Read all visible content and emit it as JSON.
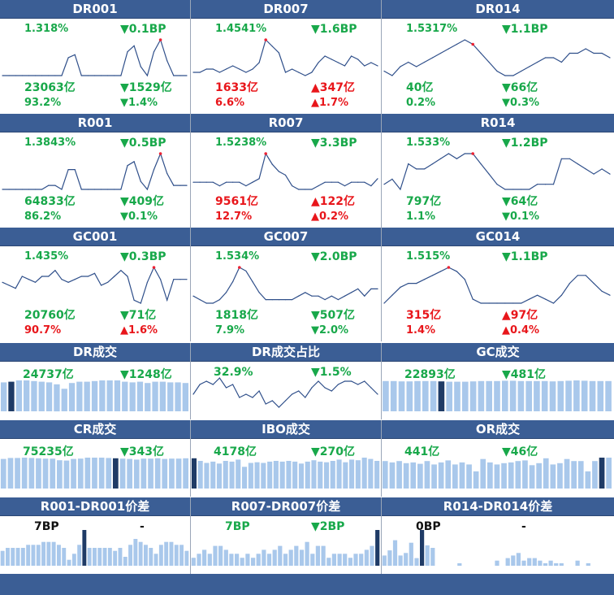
{
  "colors": {
    "header_bg": "#3b5e95",
    "up": "#e8161b",
    "down": "#18a84a",
    "line": "#2f4f8a",
    "bar": "#a9c8eb",
    "bar_hl": "#1f3b66",
    "peak": "#e23"
  },
  "rate_cells": [
    {
      "title": "DR001",
      "rate": "1.318%",
      "rate_color": "g",
      "chg": "▼0.1BP",
      "chg_color": "g",
      "vol": "23063亿",
      "vol_color": "g",
      "vchg": "▼1529亿",
      "vchg_color": "g",
      "pct": "93.2%",
      "pct_color": "g",
      "pchg": "▼1.4%",
      "pchg_color": "g"
    },
    {
      "title": "DR007",
      "rate": "1.4541%",
      "rate_color": "g",
      "chg": "▼1.6BP",
      "chg_color": "g",
      "vol": "1633亿",
      "vol_color": "r",
      "vchg": "▲347亿",
      "vchg_color": "r",
      "pct": "6.6%",
      "pct_color": "r",
      "pchg": "▲1.7%",
      "pchg_color": "r"
    },
    {
      "title": "DR014",
      "rate": "1.5317%",
      "rate_color": "g",
      "chg": "▼1.1BP",
      "chg_color": "g",
      "vol": "40亿",
      "vol_color": "g",
      "vchg": "▼66亿",
      "vchg_color": "g",
      "pct": "0.2%",
      "pct_color": "g",
      "pchg": "▼0.3%",
      "pchg_color": "g"
    },
    {
      "title": "R001",
      "rate": "1.3843%",
      "rate_color": "g",
      "chg": "▼0.5BP",
      "chg_color": "g",
      "vol": "64833亿",
      "vol_color": "g",
      "vchg": "▼409亿",
      "vchg_color": "g",
      "pct": "86.2%",
      "pct_color": "g",
      "pchg": "▼0.1%",
      "pchg_color": "g"
    },
    {
      "title": "R007",
      "rate": "1.5238%",
      "rate_color": "g",
      "chg": "▼3.3BP",
      "chg_color": "g",
      "vol": "9561亿",
      "vol_color": "r",
      "vchg": "▲122亿",
      "vchg_color": "r",
      "pct": "12.7%",
      "pct_color": "r",
      "pchg": "▲0.2%",
      "pchg_color": "r"
    },
    {
      "title": "R014",
      "rate": "1.533%",
      "rate_color": "g",
      "chg": "▼1.2BP",
      "chg_color": "g",
      "vol": "797亿",
      "vol_color": "g",
      "vchg": "▼64亿",
      "vchg_color": "g",
      "pct": "1.1%",
      "pct_color": "g",
      "pchg": "▼0.1%",
      "pchg_color": "g"
    },
    {
      "title": "GC001",
      "rate": "1.435%",
      "rate_color": "g",
      "chg": "▼0.3BP",
      "chg_color": "g",
      "vol": "20760亿",
      "vol_color": "g",
      "vchg": "▼71亿",
      "vchg_color": "g",
      "pct": "90.7%",
      "pct_color": "r",
      "pchg": "▲1.6%",
      "pchg_color": "r"
    },
    {
      "title": "GC007",
      "rate": "1.534%",
      "rate_color": "g",
      "chg": "▼2.0BP",
      "chg_color": "g",
      "vol": "1818亿",
      "vol_color": "g",
      "vchg": "▼507亿",
      "vchg_color": "g",
      "pct": "7.9%",
      "pct_color": "g",
      "pchg": "▼2.0%",
      "pchg_color": "g"
    },
    {
      "title": "GC014",
      "rate": "1.515%",
      "rate_color": "g",
      "chg": "▼1.1BP",
      "chg_color": "g",
      "vol": "315亿",
      "vol_color": "r",
      "vchg": "▲97亿",
      "vchg_color": "r",
      "pct": "1.4%",
      "pct_color": "r",
      "pchg": "▲0.4%",
      "pchg_color": "r"
    }
  ],
  "vol_cells": [
    {
      "title": "DR成交",
      "val": "24737亿",
      "val_color": "g",
      "chg": "▼1248亿",
      "chg_color": "g"
    },
    {
      "title": "DR成交占比",
      "val": "32.9%",
      "val_color": "g",
      "chg": "▼1.5%",
      "chg_color": "g"
    },
    {
      "title": "GC成交",
      "val": "22893亿",
      "val_color": "g",
      "chg": "▼481亿",
      "chg_color": "g"
    },
    {
      "title": "CR成交",
      "val": "75235亿",
      "val_color": "g",
      "chg": "▼343亿",
      "chg_color": "g"
    },
    {
      "title": "IBO成交",
      "val": "4178亿",
      "val_color": "g",
      "chg": "▼270亿",
      "chg_color": "g"
    },
    {
      "title": "OR成交",
      "val": "441亿",
      "val_color": "g",
      "chg": "▼46亿",
      "chg_color": "g"
    },
    {
      "title": "R001-DR001价差",
      "val": "7BP",
      "val_color": "k",
      "chg": "-",
      "chg_color": "k"
    },
    {
      "title": "R007-DR007价差",
      "val": "7BP",
      "val_color": "g",
      "chg": "▼2BP",
      "chg_color": "g"
    },
    {
      "title": "R014-DR014价差",
      "val": "0BP",
      "val_color": "k",
      "chg": "-",
      "chg_color": "k"
    }
  ],
  "chart_data": [
    {
      "type": "line",
      "title": "DR001",
      "values": [
        1.3,
        1.3,
        1.3,
        1.3,
        1.3,
        1.3,
        1.3,
        1.3,
        1.3,
        1.3,
        1.36,
        1.37,
        1.3,
        1.3,
        1.3,
        1.3,
        1.3,
        1.3,
        1.3,
        1.38,
        1.4,
        1.33,
        1.3,
        1.38,
        1.42,
        1.35,
        1.3,
        1.3,
        1.3
      ],
      "peak_index": 24
    },
    {
      "type": "line",
      "title": "DR007",
      "values": [
        1.42,
        1.42,
        1.43,
        1.43,
        1.42,
        1.43,
        1.44,
        1.43,
        1.42,
        1.43,
        1.45,
        1.52,
        1.5,
        1.48,
        1.42,
        1.43,
        1.42,
        1.41,
        1.42,
        1.45,
        1.47,
        1.46,
        1.45,
        1.44,
        1.47,
        1.46,
        1.44,
        1.45,
        1.44
      ],
      "peak_index": 11
    },
    {
      "type": "line",
      "title": "DR014",
      "values": [
        1.46,
        1.45,
        1.47,
        1.48,
        1.47,
        1.48,
        1.49,
        1.5,
        1.51,
        1.52,
        1.53,
        1.52,
        1.5,
        1.48,
        1.46,
        1.45,
        1.45,
        1.46,
        1.47,
        1.48,
        1.49,
        1.49,
        1.48,
        1.5,
        1.5,
        1.51,
        1.5,
        1.5,
        1.49
      ],
      "peak_index": 11
    },
    {
      "type": "line",
      "title": "R001",
      "values": [
        1.33,
        1.33,
        1.33,
        1.33,
        1.33,
        1.33,
        1.33,
        1.34,
        1.34,
        1.33,
        1.38,
        1.38,
        1.33,
        1.33,
        1.33,
        1.33,
        1.33,
        1.33,
        1.33,
        1.39,
        1.4,
        1.35,
        1.33,
        1.38,
        1.42,
        1.37,
        1.34,
        1.34,
        1.34
      ],
      "peak_index": 24
    },
    {
      "type": "line",
      "title": "R007",
      "values": [
        1.5,
        1.5,
        1.5,
        1.5,
        1.49,
        1.5,
        1.5,
        1.5,
        1.49,
        1.5,
        1.51,
        1.58,
        1.55,
        1.53,
        1.52,
        1.49,
        1.48,
        1.48,
        1.48,
        1.49,
        1.5,
        1.5,
        1.5,
        1.49,
        1.5,
        1.5,
        1.5,
        1.49,
        1.51
      ],
      "peak_index": 11
    },
    {
      "type": "line",
      "title": "R014",
      "values": [
        1.5,
        1.51,
        1.49,
        1.54,
        1.53,
        1.53,
        1.54,
        1.55,
        1.56,
        1.55,
        1.56,
        1.56,
        1.54,
        1.52,
        1.5,
        1.49,
        1.49,
        1.49,
        1.49,
        1.5,
        1.5,
        1.5,
        1.55,
        1.55,
        1.54,
        1.53,
        1.52,
        1.53,
        1.52
      ],
      "peak_index": 11
    },
    {
      "type": "line",
      "title": "GC001",
      "values": [
        1.42,
        1.41,
        1.4,
        1.44,
        1.43,
        1.42,
        1.44,
        1.44,
        1.46,
        1.43,
        1.42,
        1.43,
        1.44,
        1.44,
        1.45,
        1.41,
        1.42,
        1.44,
        1.46,
        1.44,
        1.36,
        1.35,
        1.42,
        1.47,
        1.43,
        1.36,
        1.43,
        1.43,
        1.43
      ],
      "peak_index": 23
    },
    {
      "type": "line",
      "title": "GC007",
      "values": [
        1.48,
        1.47,
        1.46,
        1.46,
        1.47,
        1.49,
        1.52,
        1.56,
        1.55,
        1.52,
        1.49,
        1.47,
        1.47,
        1.47,
        1.47,
        1.47,
        1.48,
        1.49,
        1.48,
        1.48,
        1.47,
        1.48,
        1.47,
        1.48,
        1.49,
        1.5,
        1.48,
        1.5,
        1.5
      ],
      "peak_index": 7
    },
    {
      "type": "line",
      "title": "GC014",
      "values": [
        1.45,
        1.47,
        1.49,
        1.5,
        1.5,
        1.51,
        1.52,
        1.53,
        1.54,
        1.53,
        1.51,
        1.46,
        1.45,
        1.45,
        1.45,
        1.45,
        1.45,
        1.45,
        1.46,
        1.47,
        1.46,
        1.45,
        1.47,
        1.5,
        1.52,
        1.52,
        1.5,
        1.48,
        1.47
      ],
      "peak_index": 8
    },
    {
      "type": "bar",
      "title": "DR成交",
      "values": [
        90,
        92,
        96,
        96,
        94,
        92,
        90,
        84,
        70,
        88,
        92,
        92,
        94,
        96,
        96,
        96,
        92,
        90,
        92,
        88,
        92,
        92,
        90,
        90,
        88
      ],
      "highlight_index": 1
    },
    {
      "type": "line",
      "title": "DR成交占比",
      "values": [
        30,
        33,
        34,
        33,
        35,
        32,
        33,
        29,
        30,
        29,
        31,
        27,
        28,
        26,
        28,
        30,
        31,
        29,
        32,
        34,
        32,
        31,
        33,
        34,
        34,
        33,
        34,
        32,
        30
      ],
      "peak_index": -1
    },
    {
      "type": "bar",
      "title": "GC成交",
      "values": [
        94,
        94,
        93,
        93,
        94,
        94,
        94,
        93,
        92,
        92,
        92,
        93,
        94,
        94,
        94,
        95,
        95,
        94,
        94,
        94,
        94,
        93,
        94,
        95,
        96,
        95,
        94,
        94,
        94
      ],
      "highlight_index": 7
    },
    {
      "type": "bar",
      "title": "CR成交",
      "values": [
        90,
        93,
        93,
        94,
        93,
        92,
        91,
        91,
        86,
        85,
        90,
        91,
        94,
        94,
        94,
        93,
        92,
        91,
        90,
        88,
        91,
        91,
        92,
        90,
        91,
        91,
        92
      ],
      "highlight_index": 16
    },
    {
      "type": "bar",
      "title": "IBO成交",
      "values": [
        92,
        84,
        78,
        82,
        76,
        84,
        82,
        88,
        66,
        78,
        80,
        78,
        82,
        84,
        82,
        84,
        82,
        76,
        82,
        86,
        82,
        80,
        84,
        88,
        80,
        88,
        86,
        94,
        90,
        84
      ],
      "highlight_index": 0
    },
    {
      "type": "bar",
      "title": "OR成交",
      "values": [
        80,
        76,
        80,
        74,
        76,
        72,
        80,
        70,
        76,
        82,
        70,
        76,
        70,
        50,
        86,
        76,
        70,
        74,
        76,
        80,
        82,
        68,
        74,
        88,
        70,
        74,
        86,
        80,
        80,
        50,
        80,
        90,
        90
      ],
      "highlight_index": 31
    },
    {
      "type": "bar",
      "title": "R001-DR001价差",
      "values": [
        5,
        6,
        6,
        6,
        6,
        7,
        7,
        7,
        8,
        8,
        8,
        7,
        6,
        2,
        4,
        7,
        12,
        6,
        6,
        6,
        6,
        6,
        5,
        6,
        3,
        7,
        9,
        8,
        7,
        6,
        4,
        7,
        8,
        8,
        7,
        7,
        5
      ],
      "highlight_index": 16
    },
    {
      "type": "bar",
      "title": "R007-DR007价差",
      "values": [
        2,
        3,
        4,
        3,
        5,
        5,
        4,
        3,
        3,
        2,
        3,
        2,
        3,
        4,
        3,
        4,
        5,
        3,
        4,
        5,
        4,
        6,
        3,
        5,
        5,
        2,
        3,
        3,
        3,
        2,
        3,
        3,
        4,
        5,
        9
      ],
      "highlight_index": 34
    },
    {
      "type": "bar",
      "title": "R014-DR014价差",
      "values": [
        4,
        6,
        10,
        4,
        5,
        9,
        3,
        14,
        8,
        7,
        0,
        0,
        0,
        0,
        1,
        0,
        0,
        0,
        0,
        0,
        0,
        2,
        0,
        3,
        4,
        5,
        2,
        3,
        3,
        2,
        1,
        2,
        1,
        1,
        0,
        0,
        2,
        0,
        1,
        0,
        0,
        0,
        0
      ],
      "highlight_index": 7
    }
  ]
}
